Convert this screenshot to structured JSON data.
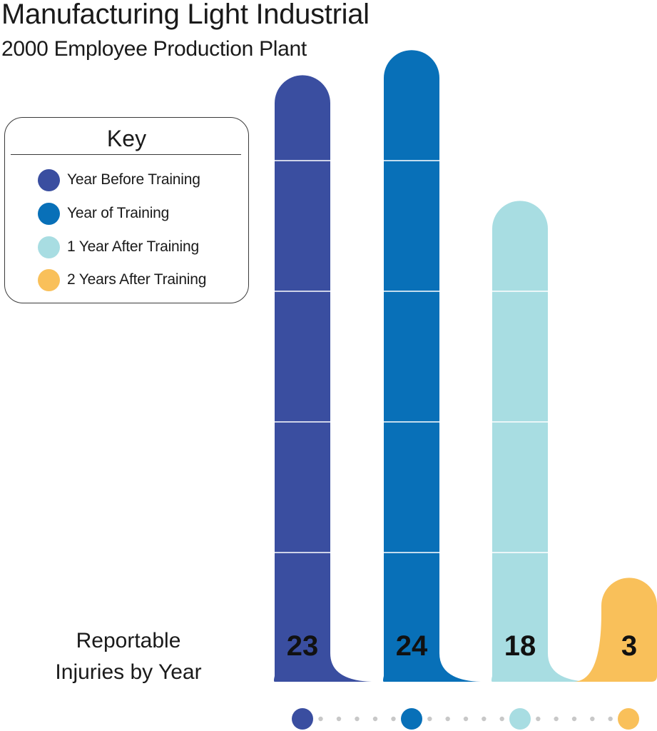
{
  "title": "Manufacturing Light Industrial",
  "subtitle": "2000 Employee Production Plant",
  "key": {
    "title": "Key",
    "items": [
      {
        "label": "Year Before Training",
        "color": "#3a4ea0"
      },
      {
        "label": "Year of Training",
        "color": "#0870b8"
      },
      {
        "label": "1 Year After Training",
        "color": "#a8dde2"
      },
      {
        "label": "2 Years After Training",
        "color": "#f9c05a"
      }
    ]
  },
  "caption": {
    "line1": "Reportable",
    "line2": "Injuries by Year"
  },
  "chart_data": {
    "type": "bar",
    "categories": [
      "Year Before Training",
      "Year of Training",
      "1 Year After Training",
      "2 Years After Training"
    ],
    "values": [
      23,
      24,
      18,
      3
    ],
    "data_labels": [
      "23",
      "24",
      "18",
      "3"
    ],
    "colors": [
      "#3a4ea0",
      "#0870b8",
      "#a8dde2",
      "#f9c05a"
    ],
    "ylabel": "Reportable Injuries by Year",
    "legend": "left",
    "grid": false
  }
}
